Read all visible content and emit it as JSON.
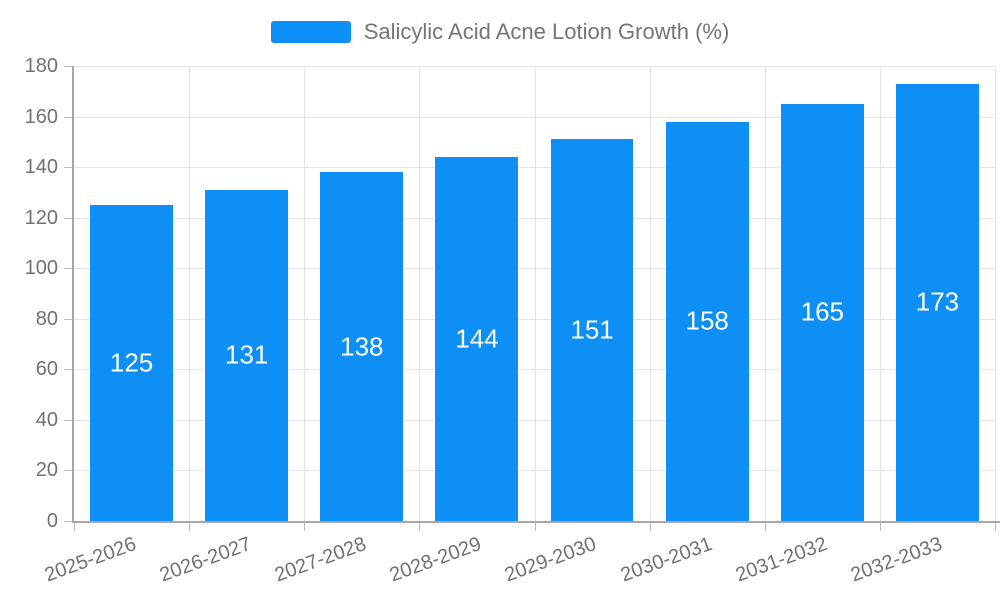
{
  "chart_data": {
    "type": "bar",
    "title": "Salicylic Acid Acne Lotion Growth (%)",
    "series_name": "Salicylic Acid Acne Lotion Growth (%)",
    "categories": [
      "2025-2026",
      "2026-2027",
      "2027-2028",
      "2028-2029",
      "2029-2030",
      "2030-2031",
      "2031-2032",
      "2032-2033"
    ],
    "values": [
      125,
      131,
      138,
      144,
      151,
      158,
      165,
      173
    ],
    "xlabel": "",
    "ylabel": "",
    "ylim": [
      0,
      180
    ],
    "y_tick_step": 20,
    "y_tick_labels": [
      "0",
      "20",
      "40",
      "60",
      "80",
      "100",
      "120",
      "140",
      "160",
      "180"
    ],
    "grid": true,
    "legend_position": "top",
    "x_label_rotation_deg": -20,
    "bar_width_fraction": 0.72
  },
  "colors": {
    "bar": "#0D8FF5",
    "bar_value_label": "#ffffff",
    "legend_text": "#757575",
    "axis_text": "#717171",
    "gridline": "#E4E4E4",
    "axis_line": "#A6A6A6",
    "tick_mark": "#BDBDBD",
    "background": "#ffffff"
  }
}
